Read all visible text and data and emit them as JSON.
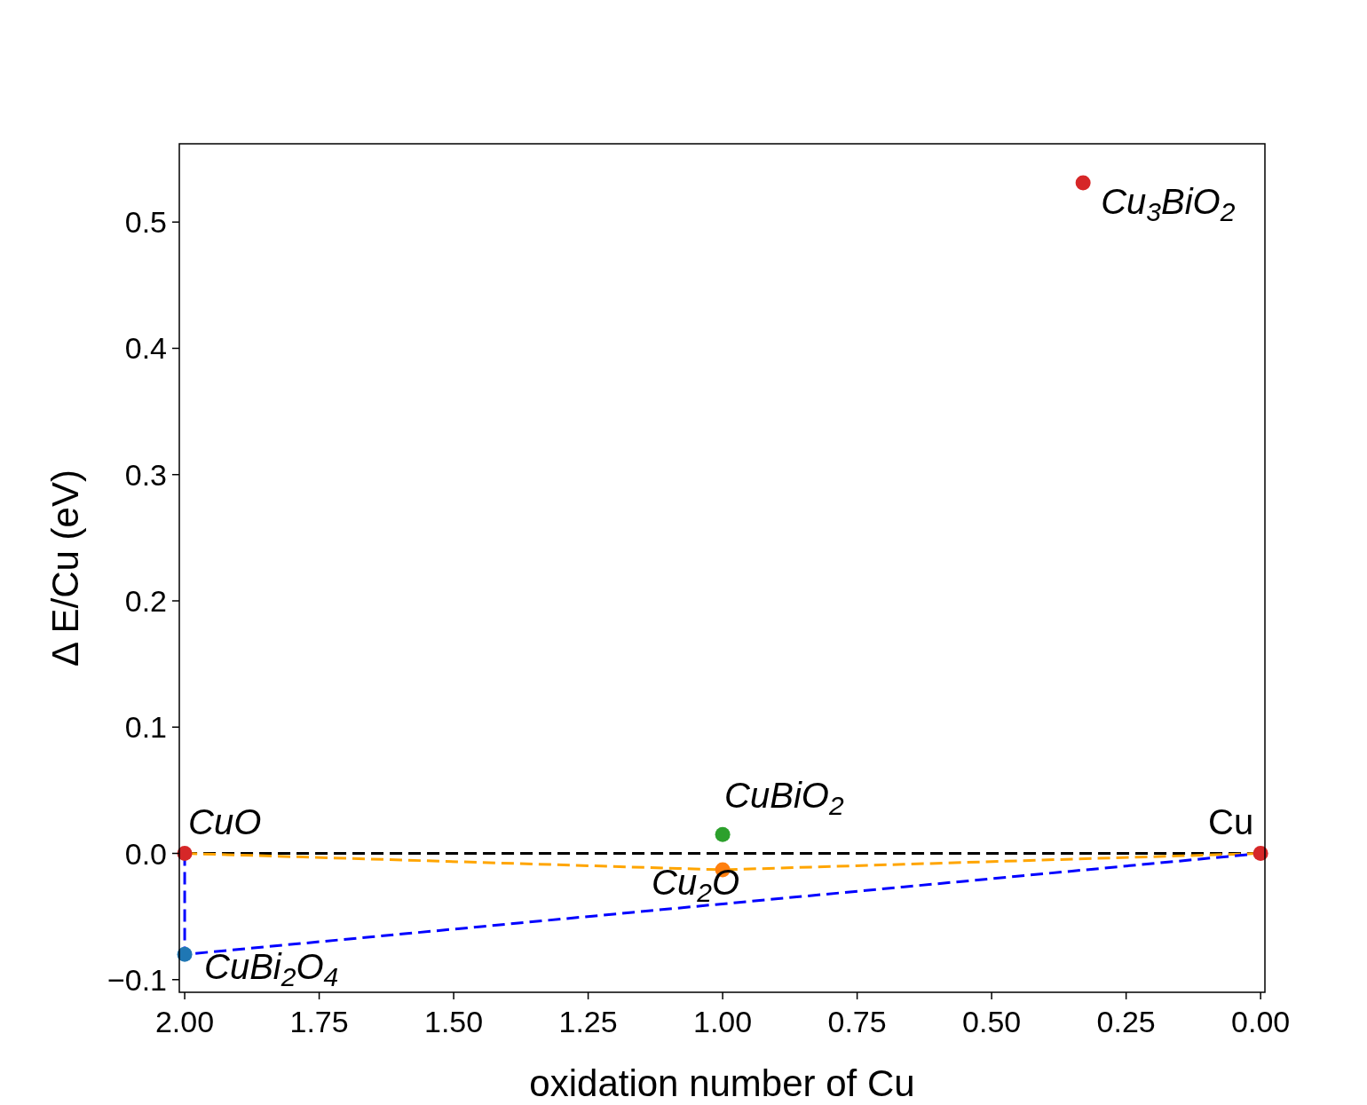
{
  "chart_data": {
    "type": "scatter",
    "xlabel": "oxidation number of Cu",
    "ylabel": "Δ E/Cu (eV)",
    "xlim": [
      2.01,
      -0.008
    ],
    "ylim": [
      -0.11,
      0.562
    ],
    "xticks": [
      {
        "value": 2,
        "label": "2.00"
      },
      {
        "value": 1.75,
        "label": "1.75"
      },
      {
        "value": 1.5,
        "label": "1.50"
      },
      {
        "value": 1.25,
        "label": "1.25"
      },
      {
        "value": 1,
        "label": "1.00"
      },
      {
        "value": 0.75,
        "label": "0.75"
      },
      {
        "value": 0.5,
        "label": "0.50"
      },
      {
        "value": 0.25,
        "label": "0.25"
      },
      {
        "value": 0,
        "label": "0.00"
      }
    ],
    "yticks": [
      {
        "value": -0.1,
        "label": "−0.1"
      },
      {
        "value": 0,
        "label": "0.0"
      },
      0.1,
      0.2,
      0.3,
      0.4,
      0.5
    ],
    "grid": false,
    "marker": "circle",
    "series": [
      {
        "type": "line",
        "color": "#000000",
        "x": [
          2,
          0
        ],
        "values": [
          0,
          0
        ],
        "line_style": "dashed",
        "marker": "none"
      },
      {
        "type": "line",
        "color": "#ffa500",
        "x": [
          2,
          1,
          0
        ],
        "values": [
          0,
          -0.013,
          0
        ],
        "line_style": "dashed",
        "marker": "none"
      },
      {
        "type": "line",
        "color": "#0000ff",
        "x": [
          2,
          2,
          0
        ],
        "values": [
          0,
          -0.08,
          0
        ],
        "line_style": "dashed",
        "marker": "none"
      },
      {
        "name": "CuO",
        "color": "#d62728",
        "x": [
          2
        ],
        "values": [
          0
        ]
      },
      {
        "name": "CuBi$_{2}$O$_{4}$",
        "color": "#1f77b4",
        "x": [
          2
        ],
        "values": [
          -0.08
        ]
      },
      {
        "name": "Cu$_{2}$O",
        "color": "#ff7f0e",
        "x": [
          1
        ],
        "values": [
          -0.013
        ]
      },
      {
        "name": "CuBiO$_{2}$",
        "color": "#2ca02c",
        "x": [
          1
        ],
        "values": [
          0.015
        ]
      },
      {
        "name": "Cu$_{3}$BiO$_{2}$",
        "color": "#d62728",
        "x": [
          0.33
        ],
        "values": [
          0.531
        ]
      },
      {
        "name": "Cu",
        "color": "#d62728",
        "x": [
          0
        ],
        "values": [
          0
        ]
      }
    ]
  }
}
